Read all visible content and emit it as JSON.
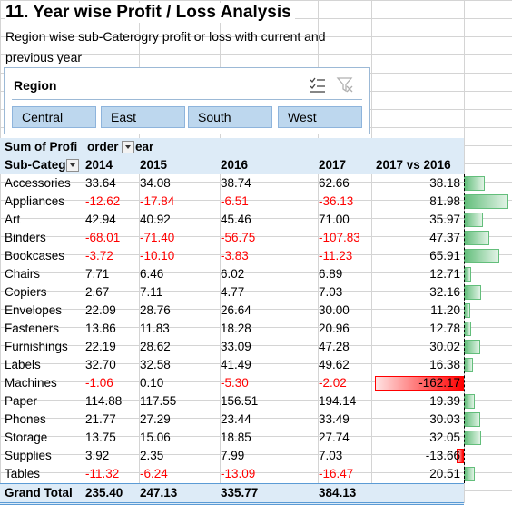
{
  "title": "11. Year wise Profit / Loss Analysis",
  "subtitle": "Region wise sub-Caterogry profit or loss with current and previous year",
  "slicer": {
    "title": "Region",
    "buttons": [
      "Central",
      "East",
      "South",
      "West"
    ],
    "multiselect_icon": "multiselect-icon",
    "clear_filter_icon": "clear-filter-icon"
  },
  "pivot": {
    "header_label": "Sum of Profi",
    "column_field_label": "order",
    "column_field_suffix": "ear",
    "row_field_label": "Sub-Categ",
    "years": [
      "2014",
      "2015",
      "2016",
      "2017"
    ],
    "diff_header": "2017 vs 2016",
    "rows": [
      {
        "name": "Accessories",
        "v": [
          "33.64",
          "34.08",
          "38.74",
          "62.66"
        ],
        "diff": "38.18"
      },
      {
        "name": "Appliances",
        "v": [
          "-12.62",
          "-17.84",
          "-6.51",
          "-36.13"
        ],
        "diff": "81.98"
      },
      {
        "name": "Art",
        "v": [
          "42.94",
          "40.92",
          "45.46",
          "71.00"
        ],
        "diff": "35.97"
      },
      {
        "name": "Binders",
        "v": [
          "-68.01",
          "-71.40",
          "-56.75",
          "-107.83"
        ],
        "diff": "47.37"
      },
      {
        "name": "Bookcases",
        "v": [
          "-3.72",
          "-10.10",
          "-3.83",
          "-11.23"
        ],
        "diff": "65.91"
      },
      {
        "name": "Chairs",
        "v": [
          "7.71",
          "6.46",
          "6.02",
          "6.89"
        ],
        "diff": "12.71"
      },
      {
        "name": "Copiers",
        "v": [
          "2.67",
          "7.11",
          "4.77",
          "7.03"
        ],
        "diff": "32.16"
      },
      {
        "name": "Envelopes",
        "v": [
          "22.09",
          "28.76",
          "26.64",
          "30.00"
        ],
        "diff": "11.20"
      },
      {
        "name": "Fasteners",
        "v": [
          "13.86",
          "11.83",
          "18.28",
          "20.96"
        ],
        "diff": "12.78"
      },
      {
        "name": "Furnishings",
        "v": [
          "22.19",
          "28.62",
          "33.09",
          "47.28"
        ],
        "diff": "30.02"
      },
      {
        "name": "Labels",
        "v": [
          "32.70",
          "32.58",
          "41.49",
          "49.62"
        ],
        "diff": "16.38"
      },
      {
        "name": "Machines",
        "v": [
          "-1.06",
          "0.10",
          "-5.30",
          "-2.02"
        ],
        "diff": "-162.17"
      },
      {
        "name": "Paper",
        "v": [
          "114.88",
          "117.55",
          "156.51",
          "194.14"
        ],
        "diff": "19.39"
      },
      {
        "name": "Phones",
        "v": [
          "21.77",
          "27.29",
          "23.44",
          "33.49"
        ],
        "diff": "30.03"
      },
      {
        "name": "Storage",
        "v": [
          "13.75",
          "15.06",
          "18.85",
          "27.74"
        ],
        "diff": "32.05"
      },
      {
        "name": "Supplies",
        "v": [
          "3.92",
          "2.35",
          "7.99",
          "7.03"
        ],
        "diff": "-13.66"
      },
      {
        "name": "Tables",
        "v": [
          "-11.32",
          "-6.24",
          "-13.09",
          "-16.47"
        ],
        "diff": "20.51"
      }
    ],
    "grand_total": {
      "label": "Grand Total",
      "v": [
        "235.40",
        "247.13",
        "335.77",
        "384.13"
      ]
    },
    "colors": {
      "positive_bar": "#63be7b",
      "negative_bar": "#ff0000",
      "negative_text": "#ff0000",
      "header_fill": "#ddebf7",
      "slicer_button": "#bdd7ee"
    }
  }
}
